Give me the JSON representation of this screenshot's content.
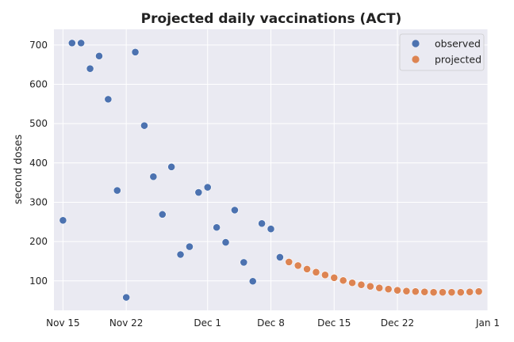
{
  "chart_data": {
    "type": "scatter",
    "title": "Projected daily vaccinations (ACT)",
    "xlabel": "",
    "ylabel": "second doses",
    "x_type": "date",
    "xlim": [
      "2020-11-14",
      "2021-01-01"
    ],
    "ylim": [
      25,
      740
    ],
    "x_ticks": [
      {
        "date": "2020-11-15",
        "label": "Nov 15"
      },
      {
        "date": "2020-11-22",
        "label": "Nov 22"
      },
      {
        "date": "2020-12-01",
        "label": "Dec 1"
      },
      {
        "date": "2020-12-08",
        "label": "Dec 8"
      },
      {
        "date": "2020-12-15",
        "label": "Dec 15"
      },
      {
        "date": "2020-12-22",
        "label": "Dec 22"
      },
      {
        "date": "2021-01-01",
        "label": "Jan 1"
      }
    ],
    "y_ticks": [
      100,
      200,
      300,
      400,
      500,
      600,
      700
    ],
    "grid": true,
    "legend_position": "top-right",
    "background_color": "#eaeaf2",
    "series": [
      {
        "name": "observed",
        "color": "#4c72b0",
        "points": [
          {
            "x": "2020-11-15",
            "y": 254
          },
          {
            "x": "2020-11-16",
            "y": 705
          },
          {
            "x": "2020-11-17",
            "y": 705
          },
          {
            "x": "2020-11-18",
            "y": 640
          },
          {
            "x": "2020-11-19",
            "y": 672
          },
          {
            "x": "2020-11-20",
            "y": 562
          },
          {
            "x": "2020-11-21",
            "y": 330
          },
          {
            "x": "2020-11-22",
            "y": 58
          },
          {
            "x": "2020-11-23",
            "y": 682
          },
          {
            "x": "2020-11-24",
            "y": 495
          },
          {
            "x": "2020-11-25",
            "y": 365
          },
          {
            "x": "2020-11-26",
            "y": 269
          },
          {
            "x": "2020-11-27",
            "y": 390
          },
          {
            "x": "2020-11-28",
            "y": 167
          },
          {
            "x": "2020-11-29",
            "y": 187
          },
          {
            "x": "2020-11-30",
            "y": 325
          },
          {
            "x": "2020-12-01",
            "y": 338
          },
          {
            "x": "2020-12-02",
            "y": 236
          },
          {
            "x": "2020-12-03",
            "y": 198
          },
          {
            "x": "2020-12-04",
            "y": 280
          },
          {
            "x": "2020-12-05",
            "y": 147
          },
          {
            "x": "2020-12-06",
            "y": 99
          },
          {
            "x": "2020-12-07",
            "y": 246
          },
          {
            "x": "2020-12-08",
            "y": 232
          },
          {
            "x": "2020-12-09",
            "y": 160
          }
        ]
      },
      {
        "name": "projected",
        "color": "#dd8452",
        "points": [
          {
            "x": "2020-12-10",
            "y": 148
          },
          {
            "x": "2020-12-11",
            "y": 139
          },
          {
            "x": "2020-12-12",
            "y": 130
          },
          {
            "x": "2020-12-13",
            "y": 122
          },
          {
            "x": "2020-12-14",
            "y": 115
          },
          {
            "x": "2020-12-15",
            "y": 108
          },
          {
            "x": "2020-12-16",
            "y": 101
          },
          {
            "x": "2020-12-17",
            "y": 95
          },
          {
            "x": "2020-12-18",
            "y": 90
          },
          {
            "x": "2020-12-19",
            "y": 86
          },
          {
            "x": "2020-12-20",
            "y": 82
          },
          {
            "x": "2020-12-21",
            "y": 79
          },
          {
            "x": "2020-12-22",
            "y": 76
          },
          {
            "x": "2020-12-23",
            "y": 74
          },
          {
            "x": "2020-12-24",
            "y": 73
          },
          {
            "x": "2020-12-25",
            "y": 72
          },
          {
            "x": "2020-12-26",
            "y": 71
          },
          {
            "x": "2020-12-27",
            "y": 71
          },
          {
            "x": "2020-12-28",
            "y": 71
          },
          {
            "x": "2020-12-29",
            "y": 71
          },
          {
            "x": "2020-12-30",
            "y": 72
          },
          {
            "x": "2020-12-31",
            "y": 73
          }
        ]
      }
    ]
  }
}
